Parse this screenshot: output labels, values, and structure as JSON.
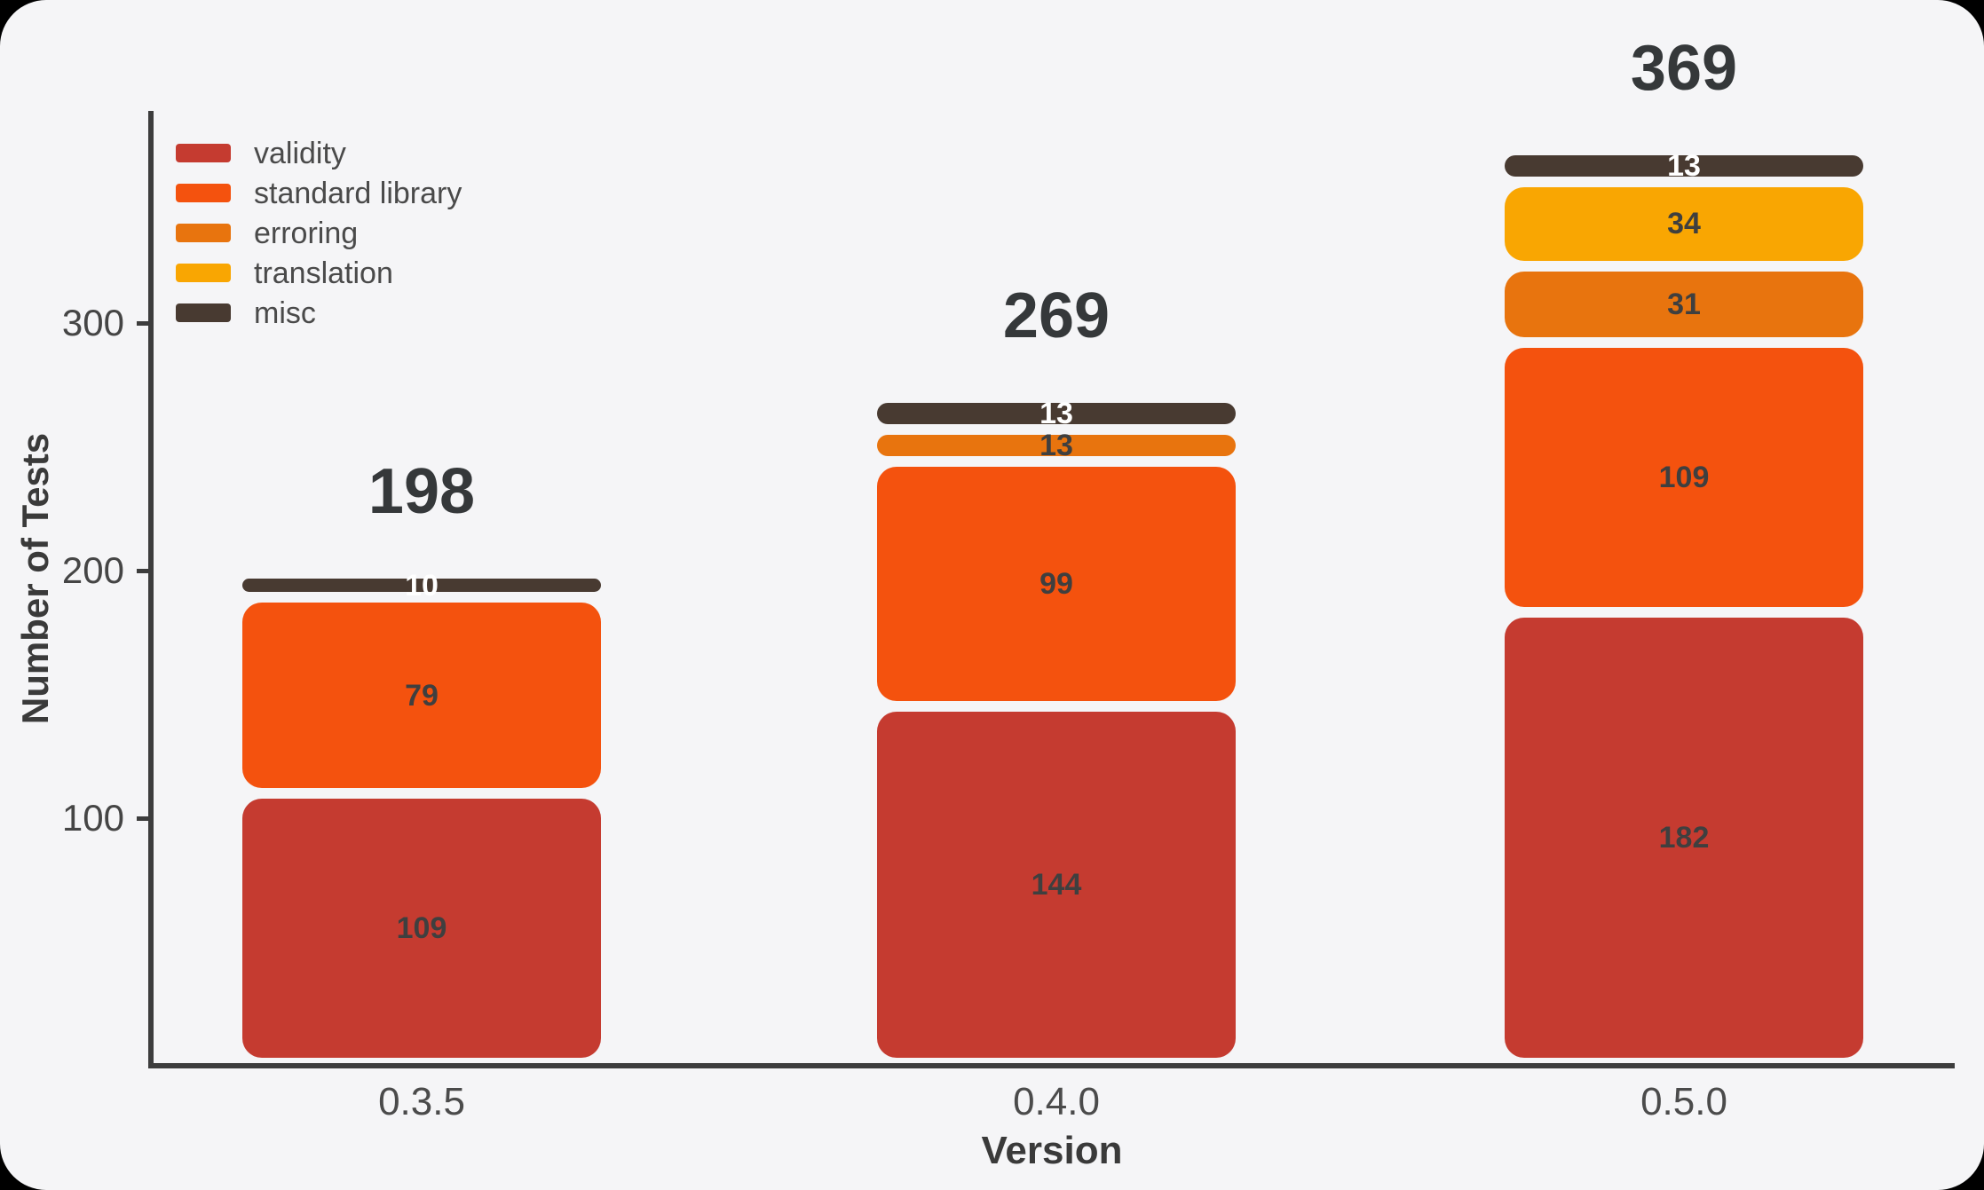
{
  "frame": {
    "background": "#f5f5f7",
    "outside_color": "#000000",
    "axis_color": "#3d3d3d",
    "tick_text_color": "#454545",
    "total_label_color": "#35383a"
  },
  "chart_data": {
    "type": "bar",
    "stacked": true,
    "title": "",
    "xlabel": "Version",
    "ylabel": "Number of Tests",
    "categories": [
      "0.3.5",
      "0.4.0",
      "0.5.0"
    ],
    "totals": [
      198,
      269,
      369
    ],
    "series": [
      {
        "name": "validity",
        "color": "#c53b30",
        "label_color": "#3f3f3f",
        "values": [
          109,
          144,
          182
        ]
      },
      {
        "name": "standard library",
        "color": "#f4520e",
        "label_color": "#3f3f3f",
        "values": [
          79,
          99,
          109
        ]
      },
      {
        "name": "erroring",
        "color": "#e8740e",
        "label_color": "#3f3f3f",
        "values": [
          0,
          13,
          31
        ]
      },
      {
        "name": "translation",
        "color": "#f9a602",
        "label_color": "#3f3f3f",
        "values": [
          0,
          0,
          34
        ]
      },
      {
        "name": "misc",
        "color": "#483a31",
        "label_color": "#ffffff",
        "values": [
          10,
          13,
          13
        ]
      }
    ],
    "yticks": [
      100,
      200,
      300
    ],
    "ylim": [
      0,
      385
    ],
    "grid": false,
    "legend_position": "upper-left"
  }
}
